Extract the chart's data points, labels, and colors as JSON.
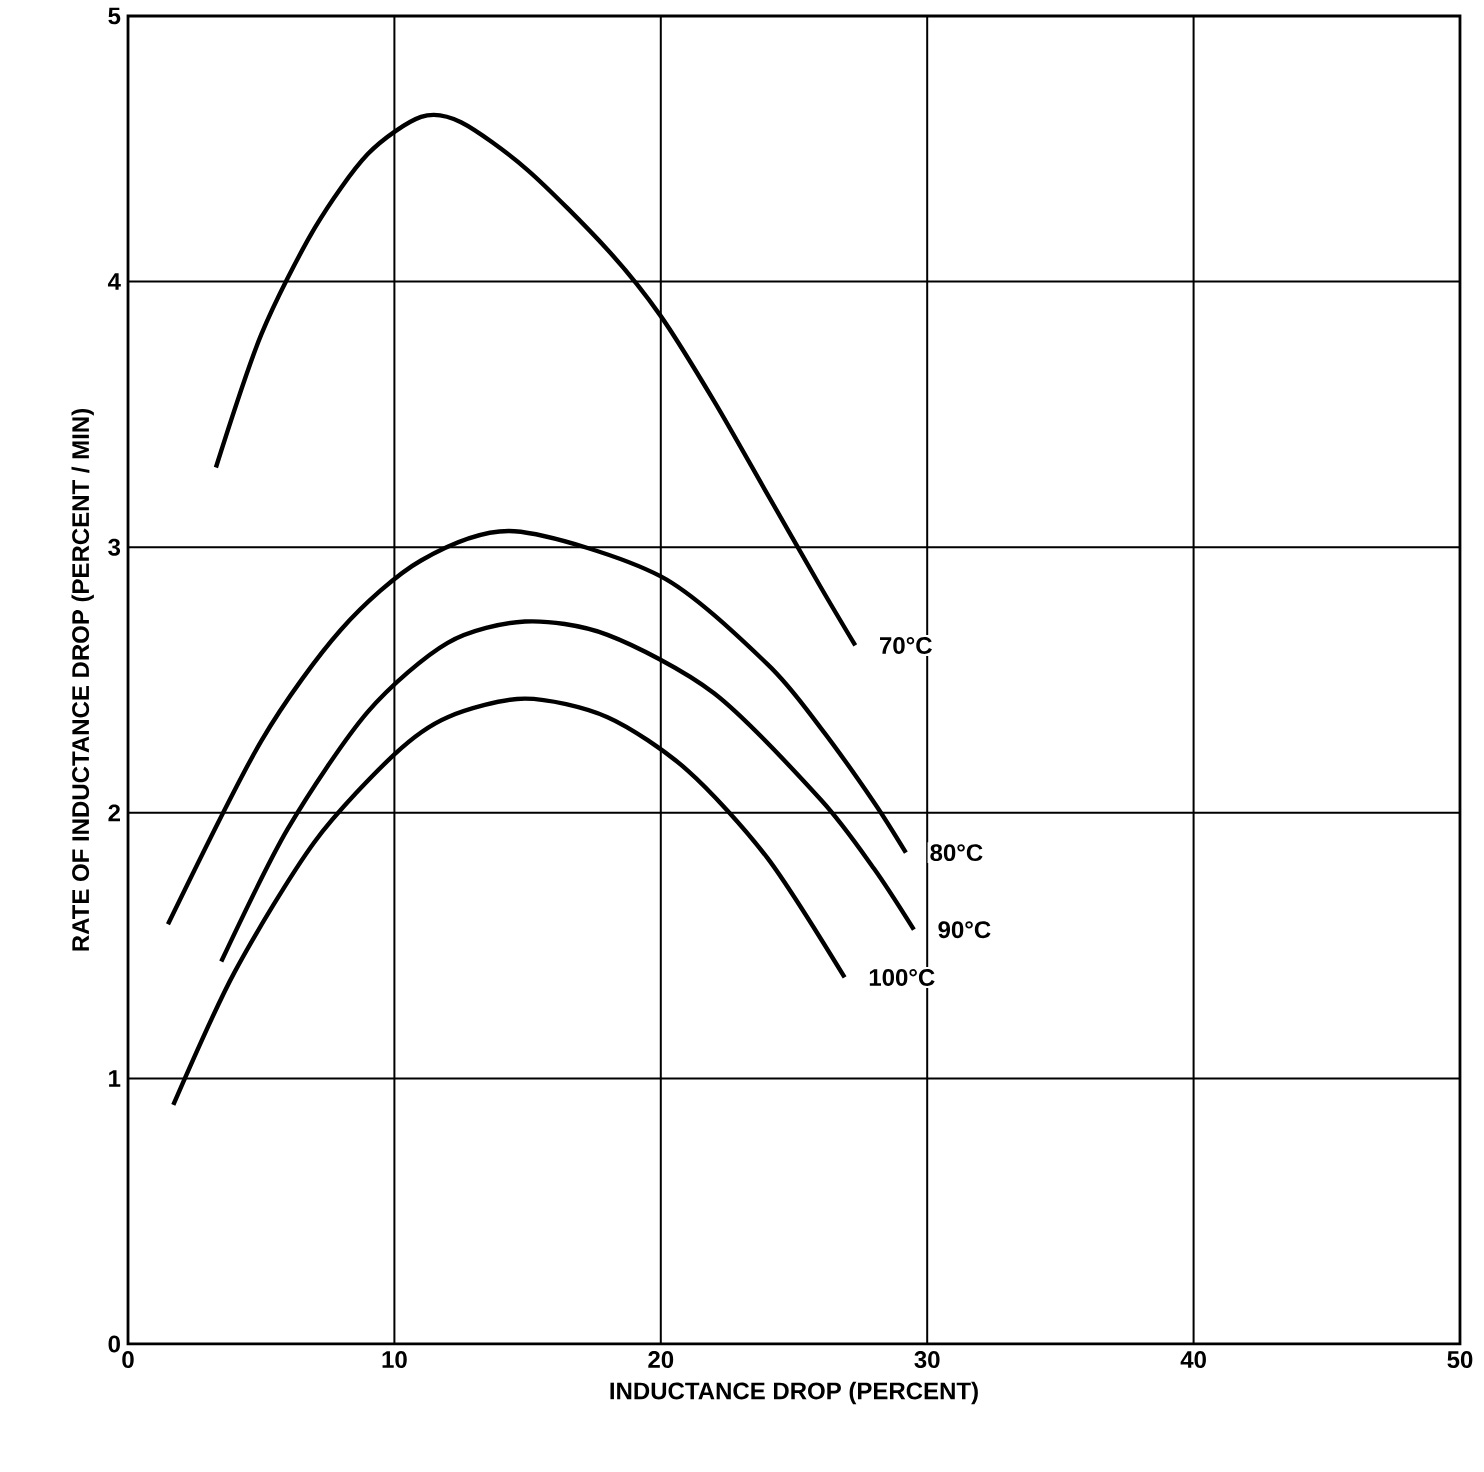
{
  "chart_data": {
    "type": "line",
    "xlabel": "INDUCTANCE DROP (PERCENT)",
    "ylabel": "RATE OF INDUCTANCE DROP (PERCENT / MIN)",
    "xlim": [
      0,
      50
    ],
    "ylim": [
      0,
      5
    ],
    "xticks": [
      0,
      10,
      20,
      30,
      40,
      50
    ],
    "yticks": [
      0,
      1,
      2,
      3,
      4,
      5
    ],
    "grid": true,
    "legend": false,
    "marker": "none",
    "line_style": "solid",
    "series": [
      {
        "name": "70°C",
        "color": "#000000",
        "x": [
          3.3,
          5,
          7,
          9,
          11,
          12.5,
          15,
          18,
          20,
          22,
          24,
          26,
          27.3
        ],
        "values": [
          3.3,
          3.8,
          4.2,
          4.48,
          4.62,
          4.6,
          4.42,
          4.12,
          3.87,
          3.55,
          3.2,
          2.85,
          2.63
        ]
      },
      {
        "name": "80°C",
        "color": "#000000",
        "x": [
          1.5,
          5,
          8,
          11,
          14.5,
          20,
          24,
          26,
          28,
          29.2
        ],
        "values": [
          1.58,
          2.27,
          2.69,
          2.95,
          3.06,
          2.89,
          2.56,
          2.32,
          2.04,
          1.85
        ]
      },
      {
        "name": "90°C",
        "color": "#000000",
        "x": [
          3.5,
          6,
          9,
          12,
          14.9,
          18,
          22,
          26,
          28,
          29.5
        ],
        "values": [
          1.44,
          1.94,
          2.38,
          2.64,
          2.72,
          2.67,
          2.45,
          2.05,
          1.79,
          1.56
        ]
      },
      {
        "name": "100°C",
        "color": "#000000",
        "x": [
          1.7,
          4,
          7,
          10,
          12,
          14.9,
          18,
          21,
          24,
          26.9
        ],
        "values": [
          0.9,
          1.4,
          1.89,
          2.22,
          2.36,
          2.43,
          2.36,
          2.16,
          1.83,
          1.38
        ]
      }
    ]
  }
}
